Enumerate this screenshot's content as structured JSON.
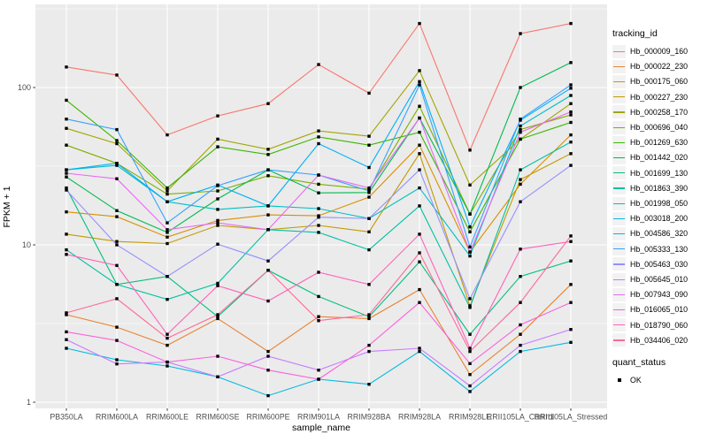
{
  "figure": {
    "x_axis": {
      "title": "sample_name"
    },
    "y_axis": {
      "title": "FPKM + 1",
      "tick_labels": [
        "1",
        "10",
        "100"
      ]
    },
    "legend": {
      "tracking_title": "tracking_id",
      "quant_title": "quant_status",
      "quant_items": [
        {
          "label": "OK",
          "key": "black-square-point"
        }
      ]
    }
  },
  "chart_data": {
    "type": "line",
    "title": "",
    "xlabel": "sample_name",
    "ylabel": "FPKM + 1",
    "y_scale": "log10",
    "ylim": [
      1,
      320
    ],
    "y_ticks": [
      1,
      10,
      100
    ],
    "y_minor_ticks": [
      3.162,
      31.62,
      316.2
    ],
    "grid": true,
    "legend_position": "right",
    "panel_background": "#EBEBEB",
    "gridline_color": "#FFFFFF",
    "point_shape": "filled-black-square",
    "quant_status": "OK",
    "categories": [
      "PB350LA",
      "RRIM600LA",
      "RRIM600LE",
      "RRIM600SE",
      "RRIM600PE",
      "RRIM901LA",
      "RRIM928BA",
      "RRIM928LA",
      "RRIM928LE",
      "RRII105LA_Control",
      "RRII105LA_Stressed"
    ],
    "series": [
      {
        "name": "Hb_000009_160",
        "color": "#F8766D",
        "values": [
          135,
          120,
          50,
          66,
          79,
          140,
          92,
          255,
          40,
          220,
          255
        ]
      },
      {
        "name": "Hb_000022_230",
        "color": "#EA8331",
        "values": [
          3.6,
          3.0,
          2.3,
          3.4,
          2.1,
          3.5,
          3.4,
          5.2,
          1.5,
          2.7,
          5.6
        ]
      },
      {
        "name": "Hb_000175_060",
        "color": "#D89000",
        "values": [
          16.2,
          15.1,
          11.2,
          14.3,
          15.5,
          15.3,
          20.1,
          43,
          9.0,
          24.3,
          50
        ]
      },
      {
        "name": "Hb_000227_230",
        "color": "#C09B00",
        "values": [
          11.7,
          10.5,
          10.2,
          13.3,
          12.5,
          13.3,
          12.1,
          38,
          4.1,
          26,
          38
        ]
      },
      {
        "name": "Hb_000258_170",
        "color": "#A3A500",
        "values": [
          55,
          44,
          22,
          47,
          40.5,
          53,
          49,
          128,
          24,
          47,
          79
        ]
      },
      {
        "name": "Hb_000696_040",
        "color": "#7CAE00",
        "values": [
          43,
          33,
          21,
          22,
          27.5,
          24.3,
          22.6,
          76,
          15.7,
          54,
          67
        ]
      },
      {
        "name": "Hb_001269_630",
        "color": "#39B600",
        "values": [
          83,
          46,
          23,
          42,
          37.5,
          48.5,
          43,
          52,
          12.1,
          47,
          60
        ]
      },
      {
        "name": "Hb_001442_020",
        "color": "#00BB4E",
        "values": [
          27,
          16.5,
          12.0,
          19.6,
          30,
          21.4,
          21.5,
          64,
          15.7,
          100,
          144
        ]
      },
      {
        "name": "Hb_001699_130",
        "color": "#00BF7D",
        "values": [
          23,
          5.6,
          6.3,
          3.5,
          6.9,
          4.7,
          3.5,
          7.8,
          2.7,
          6.3,
          7.9
        ]
      },
      {
        "name": "Hb_001863_390",
        "color": "#00C1A3",
        "values": [
          9.3,
          5.6,
          4.5,
          5.7,
          12.5,
          12.0,
          9.3,
          17.7,
          4.0,
          30,
          45
        ]
      },
      {
        "name": "Hb_001998_050",
        "color": "#00BFC4",
        "values": [
          30,
          32,
          18.8,
          16.8,
          17.7,
          17.0,
          14.7,
          23,
          8.5,
          57,
          89
        ]
      },
      {
        "name": "Hb_003018_200",
        "color": "#00BAE0",
        "values": [
          2.2,
          1.86,
          1.7,
          1.45,
          1.1,
          1.4,
          1.3,
          2.1,
          1.17,
          2.1,
          2.4
        ]
      },
      {
        "name": "Hb_004586_320",
        "color": "#00B0F6",
        "values": [
          30,
          33,
          18.8,
          24,
          17.7,
          44,
          31,
          109,
          13,
          62,
          99
        ]
      },
      {
        "name": "Hb_005333_130",
        "color": "#35A2FF",
        "values": [
          63,
          54,
          13.8,
          23.8,
          30,
          27.8,
          22,
          104,
          9.7,
          63,
          104
        ]
      },
      {
        "name": "Hb_005463_030",
        "color": "#9590FF",
        "values": [
          22.3,
          10,
          6.3,
          10.1,
          7.9,
          15,
          14.7,
          30,
          4.55,
          18.8,
          32
        ]
      },
      {
        "name": "Hb_005645_010",
        "color": "#C77CFF",
        "values": [
          2.5,
          1.75,
          1.8,
          1.45,
          1.96,
          1.6,
          2.1,
          2.2,
          1.27,
          2.3,
          2.9
        ]
      },
      {
        "name": "Hb_007943_090",
        "color": "#E76BF3",
        "values": [
          28.5,
          26.3,
          12.5,
          13.8,
          12.5,
          27.8,
          23,
          64,
          9.0,
          52,
          70
        ]
      },
      {
        "name": "Hb_016065_010",
        "color": "#FA62DB",
        "values": [
          2.8,
          2.47,
          1.8,
          1.96,
          1.6,
          1.4,
          2.3,
          4.3,
          1.76,
          3.1,
          4.3
        ]
      },
      {
        "name": "Hb_018790_060",
        "color": "#FF62BC",
        "values": [
          8.7,
          7.4,
          2.7,
          5.5,
          4.4,
          6.7,
          5.6,
          11.7,
          2.2,
          9.4,
          10.5
        ]
      },
      {
        "name": "Hb_034406_020",
        "color": "#FF6A98",
        "values": [
          3.7,
          4.55,
          2.55,
          3.6,
          6.9,
          3.3,
          3.6,
          8.9,
          2.1,
          4.3,
          11.4
        ]
      }
    ]
  }
}
